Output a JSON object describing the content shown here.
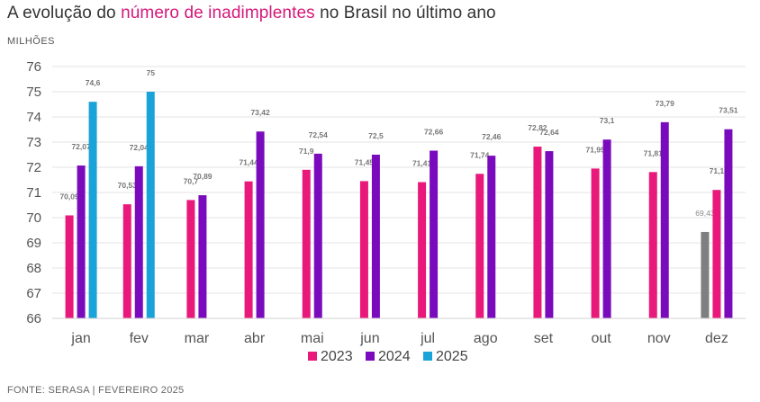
{
  "title": {
    "prefix": "A evolução do ",
    "highlight": "número de inadimplentes",
    "suffix": " no Brasil no último ano"
  },
  "unit_label": "MILHÕES",
  "source": "FONTE: SERASA | FEVEREIRO 2025",
  "colors": {
    "2023": "#e8197a",
    "2024": "#7a0bbd",
    "2025": "#1aa3d8",
    "highlight_title": "#d6187a",
    "grid": "#e3e3e3",
    "gray_bar": "#7f7f7f"
  },
  "chart_data": {
    "type": "bar",
    "title": "A evolução do número de inadimplentes no Brasil no último ano",
    "ylabel": "MILHÕES",
    "ylim": [
      66,
      76
    ],
    "yticks": [
      66,
      67,
      68,
      69,
      70,
      71,
      72,
      73,
      74,
      75,
      76
    ],
    "grid": true,
    "legend_position": "bottom",
    "categories": [
      "jan",
      "fev",
      "mar",
      "abr",
      "mai",
      "jun",
      "jul",
      "ago",
      "set",
      "out",
      "nov",
      "dez"
    ],
    "series": [
      {
        "name": "2023",
        "values": [
          70.09,
          70.53,
          70.7,
          71.44,
          71.9,
          71.45,
          71.41,
          71.74,
          72.82,
          71.95,
          71.81,
          71.1
        ],
        "labels": [
          "70,09",
          "70,53",
          "70,7",
          "71,44",
          "71,9",
          "71,45",
          "71,41",
          "71,74",
          "72,82",
          "71,95",
          "71,81",
          "71,1"
        ]
      },
      {
        "name": "2024",
        "values": [
          72.07,
          72.04,
          70.89,
          73.42,
          72.54,
          72.5,
          72.66,
          72.46,
          72.64,
          73.1,
          73.79,
          73.51
        ],
        "labels": [
          "72,07",
          "72,04",
          "70,89",
          "73,42",
          "72,54",
          "72,5",
          "72,66",
          "72,46",
          "72,64",
          "73,1",
          "73,79",
          "73,51"
        ]
      },
      {
        "name": "2025",
        "values": [
          74.6,
          75,
          null,
          null,
          null,
          null,
          null,
          null,
          null,
          null,
          null,
          null
        ],
        "labels": [
          "74,6",
          "75",
          null,
          null,
          null,
          null,
          null,
          null,
          null,
          null,
          null,
          null
        ]
      }
    ],
    "extra_bar": {
      "category": "dez",
      "value": 69.43,
      "label": "69,43",
      "color": "#7f7f7f"
    }
  }
}
